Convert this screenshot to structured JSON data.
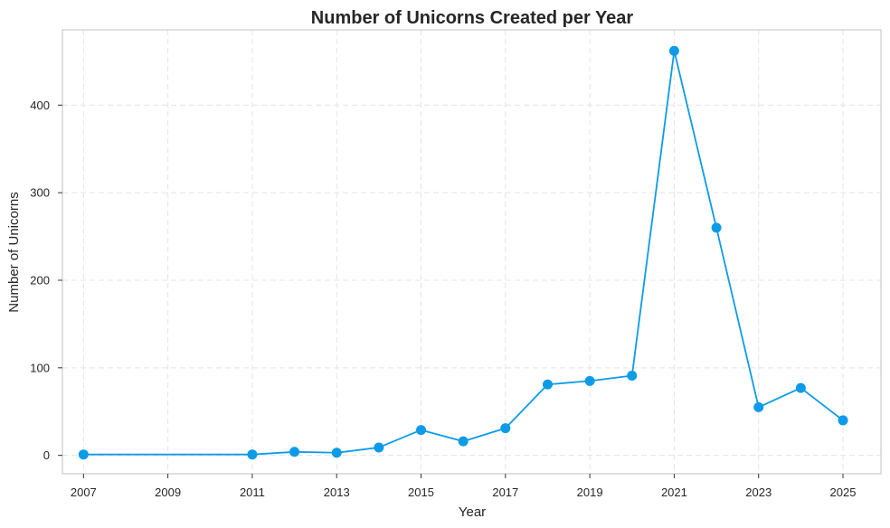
{
  "chart_data": {
    "type": "line",
    "title": "Number of Unicorns Created per Year",
    "xlabel": "Year",
    "ylabel": "Number of Unicorns",
    "xlim": [
      2006.5,
      2025.9
    ],
    "ylim": [
      -21,
      486
    ],
    "x_ticks": [
      2007,
      2009,
      2011,
      2013,
      2015,
      2017,
      2019,
      2021,
      2023,
      2025
    ],
    "y_ticks": [
      0,
      100,
      200,
      300,
      400
    ],
    "grid": true,
    "color": "#0d9be8",
    "series": [
      {
        "x": [
          2007,
          2011,
          2012,
          2013,
          2014,
          2015,
          2016,
          2017,
          2018,
          2019,
          2020,
          2021,
          2022,
          2023,
          2024,
          2025
        ],
        "values": [
          1,
          1,
          4,
          3,
          9,
          29,
          16,
          31,
          81,
          85,
          91,
          462,
          260,
          55,
          77,
          40
        ]
      }
    ]
  }
}
